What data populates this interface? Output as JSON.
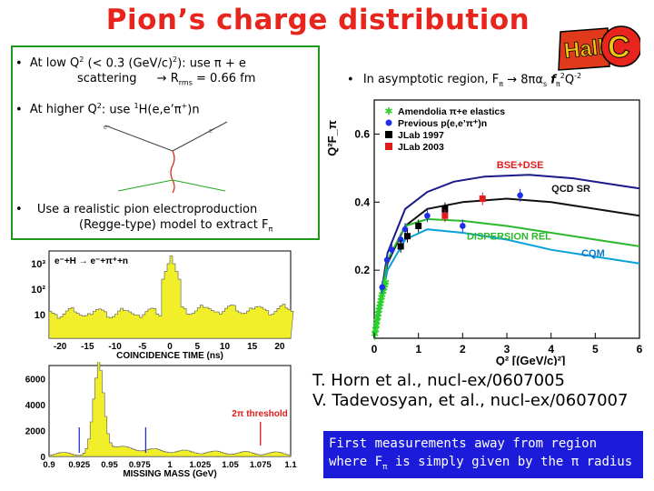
{
  "slide": {
    "title": "Pion’s charge distribution",
    "bullets": {
      "b1_line1_pre": "At low Q",
      "b1_line1_sup": "2",
      "b1_line1_mid": " (< 0.3 (GeV/c)",
      "b1_line1_sup2": "2",
      "b1_line1_post": "): use π + e",
      "b1_line2_pre": "scattering",
      "b1_arrow": "→",
      "b1_line2_r": "R",
      "b1_line2_sub": "rms",
      "b1_line2_post": "= 0.66 fm",
      "b2_pre": "At higher Q",
      "b2_sup": "2",
      "b2_mid": ": use ",
      "b2_sup2": "1",
      "b2_post": "H(e,e’π",
      "b2_sup3": "+",
      "b2_end": ")n",
      "b3_line1": "Use a realistic pion electroproduction",
      "b3_line2": "(Regge-type) model to extract F",
      "b3_sub": "π",
      "asym_pre": "In asymptotic region, F",
      "asym_sub": "π",
      "asym_arrow": "→",
      "asym_mid": "8πα",
      "asym_sub2": "s",
      "asym_f": "f",
      "asym_sub3": "π",
      "asym_sup": "2",
      "asym_end": "Q",
      "asym_sup2": "-2"
    },
    "references": [
      "T. Horn et al., nucl-ex/0607005",
      "V. Tadevosyan, et al., nucl-ex/0607007"
    ],
    "bluebox": {
      "line1": "First measurements away from region",
      "line2_pre": "where F",
      "line2_sub": "π",
      "line2_post": "is simply given by the π radius"
    },
    "logo_text": "Hall C",
    "colors": {
      "title": "#e8251c",
      "green_border": "#1d9a1d",
      "blue_box": "#1b1bd9"
    }
  },
  "chart_data": [
    {
      "type": "scatter",
      "title": "",
      "ylabel": "Q²F_π",
      "xlabel": "Q² [(GeV/c)²]",
      "xlim": [
        0,
        6
      ],
      "ylim": [
        0,
        0.7
      ],
      "x_ticks": [
        "0",
        "1",
        "2",
        "3",
        "4",
        "5",
        "6"
      ],
      "y_ticks": [
        "0.2",
        "0.4",
        "0.6"
      ],
      "legend": [
        "Amendolia π+e elastics",
        "Previous p(e,e’π⁺)n",
        "JLab 1997",
        "JLab 2003"
      ],
      "curve_labels": [
        "BSE+DSE",
        "QCD SR",
        "DISPERSION REL",
        "CQM"
      ],
      "series": [
        {
          "name": "Amendolia π+e elastics",
          "color": "#2bd12b",
          "x": [
            0.015,
            0.03,
            0.045,
            0.06,
            0.075,
            0.09,
            0.105,
            0.12,
            0.135,
            0.15,
            0.165,
            0.18,
            0.2,
            0.22,
            0.24,
            0.26
          ],
          "y": [
            0.013,
            0.026,
            0.038,
            0.05,
            0.061,
            0.072,
            0.083,
            0.092,
            0.102,
            0.111,
            0.12,
            0.128,
            0.138,
            0.148,
            0.156,
            0.164
          ]
        },
        {
          "name": "Previous p(e,e’π⁺)n",
          "color": "#1f2fe6",
          "x": [
            0.18,
            0.29,
            0.4,
            0.6,
            0.7,
            1.2,
            1.6,
            2.0,
            3.3
          ],
          "y": [
            0.15,
            0.23,
            0.26,
            0.29,
            0.32,
            0.36,
            0.37,
            0.33,
            0.42
          ]
        },
        {
          "name": "JLab 1997",
          "color": "#000000",
          "x": [
            0.6,
            0.75,
            1.0,
            1.6
          ],
          "y": [
            0.27,
            0.3,
            0.33,
            0.38
          ]
        },
        {
          "name": "JLab 2003",
          "color": "#e01b1b",
          "x": [
            1.6,
            2.45
          ],
          "y": [
            0.36,
            0.41
          ]
        }
      ],
      "curves": [
        {
          "name": "BSE+DSE",
          "color": "#1a1a8a",
          "x": [
            0,
            0.3,
            0.7,
            1.2,
            1.8,
            2.5,
            3.5,
            4.5,
            5.5,
            6
          ],
          "y": [
            0,
            0.25,
            0.38,
            0.43,
            0.46,
            0.475,
            0.48,
            0.47,
            0.45,
            0.44
          ]
        },
        {
          "name": "QCD SR",
          "color": "#111111",
          "x": [
            0,
            0.3,
            0.7,
            1.2,
            2,
            3,
            4,
            5,
            6
          ],
          "y": [
            0,
            0.22,
            0.33,
            0.38,
            0.4,
            0.41,
            0.4,
            0.38,
            0.36
          ]
        },
        {
          "name": "DISPERSION REL",
          "color": "#2bb82b",
          "x": [
            0,
            0.3,
            0.7,
            1.2,
            2,
            3,
            4,
            5,
            6
          ],
          "y": [
            0,
            0.23,
            0.33,
            0.35,
            0.345,
            0.33,
            0.31,
            0.29,
            0.27
          ]
        },
        {
          "name": "CQM",
          "color": "#0aa0d8",
          "x": [
            0,
            0.3,
            0.7,
            1.2,
            2,
            3,
            4,
            5,
            6
          ],
          "y": [
            0,
            0.2,
            0.29,
            0.32,
            0.31,
            0.29,
            0.26,
            0.24,
            0.22
          ]
        }
      ]
    },
    {
      "type": "bar",
      "title": "",
      "xlabel": "COINCIDENCE TIME (ns)",
      "plot_label": "e⁻+H → e⁻+π⁺+n",
      "xlim": [
        -22,
        22
      ],
      "y_log": true,
      "y_ticks": [
        "10³",
        "10²",
        "10"
      ],
      "x_ticks": [
        "-20",
        "-15",
        "-10",
        "-5",
        "0",
        "5",
        "10",
        "15",
        "20"
      ],
      "peak_x": 0
    },
    {
      "type": "bar",
      "title": "",
      "xlabel": "MISSING MASS (GeV)",
      "annotation": "2π threshold",
      "xlim": [
        0.9,
        1.1
      ],
      "ylim": [
        0,
        7000
      ],
      "y_ticks": [
        "6000",
        "4000",
        "2000",
        "0"
      ],
      "x_ticks": [
        "0.9",
        "0.925",
        "0.95",
        "0.975",
        "1",
        "1.025",
        "1.05",
        "1.075",
        "1.1"
      ],
      "peak_x": 0.94
    }
  ]
}
